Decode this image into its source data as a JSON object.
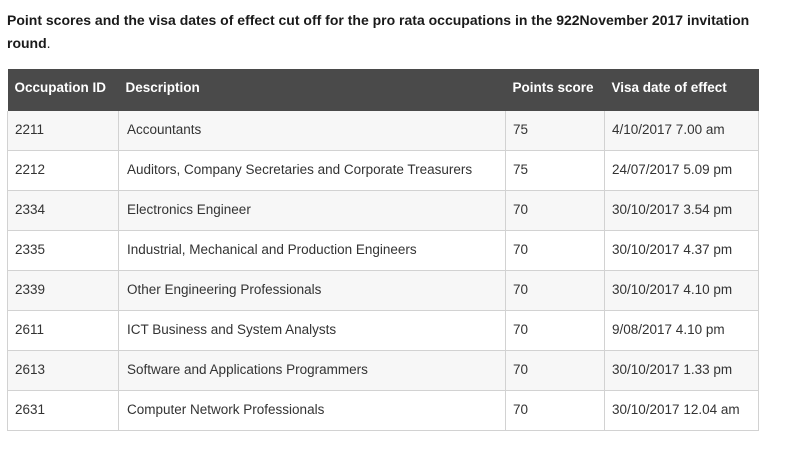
{
  "caption": {
    "bold_text": "Point scores and the visa dates of effect cut off for the pro rata occupations in the 922November 2017 invitation round",
    "trailing_text": "."
  },
  "table": {
    "headers": {
      "occupation_id": "Occupation ID",
      "description": "Description",
      "points_score": "Points score",
      "visa_date": "Visa date of effect"
    },
    "rows": [
      {
        "id": "2211",
        "description": "Accountants",
        "points": "75",
        "date": "4/10/2017 7.00 am"
      },
      {
        "id": "2212",
        "description": "Auditors, Company Secretaries and Corporate Treasurers",
        "points": "75",
        "date": "24/07/2017 5.09 pm"
      },
      {
        "id": "2334",
        "description": "Electronics Engineer",
        "points": "70",
        "date": "30/10/2017 3.54 pm"
      },
      {
        "id": "2335",
        "description": "Industrial, Mechanical and Production Engineers",
        "points": "70",
        "date": "30/10/2017 4.37 pm"
      },
      {
        "id": "2339",
        "description": "Other Engineering Professionals",
        "points": "70",
        "date": "30/10/2017 4.10 pm"
      },
      {
        "id": "2611",
        "description": "ICT Business and System Analysts",
        "points": "70",
        "date": "9/08/2017 4.10 pm"
      },
      {
        "id": "2613",
        "description": "Software and Applications Programmers",
        "points": "70",
        "date": "30/10/2017 1.33 pm"
      },
      {
        "id": "2631",
        "description": "Computer Network Professionals",
        "points": "70",
        "date": "30/10/2017 12.04 am"
      }
    ]
  }
}
